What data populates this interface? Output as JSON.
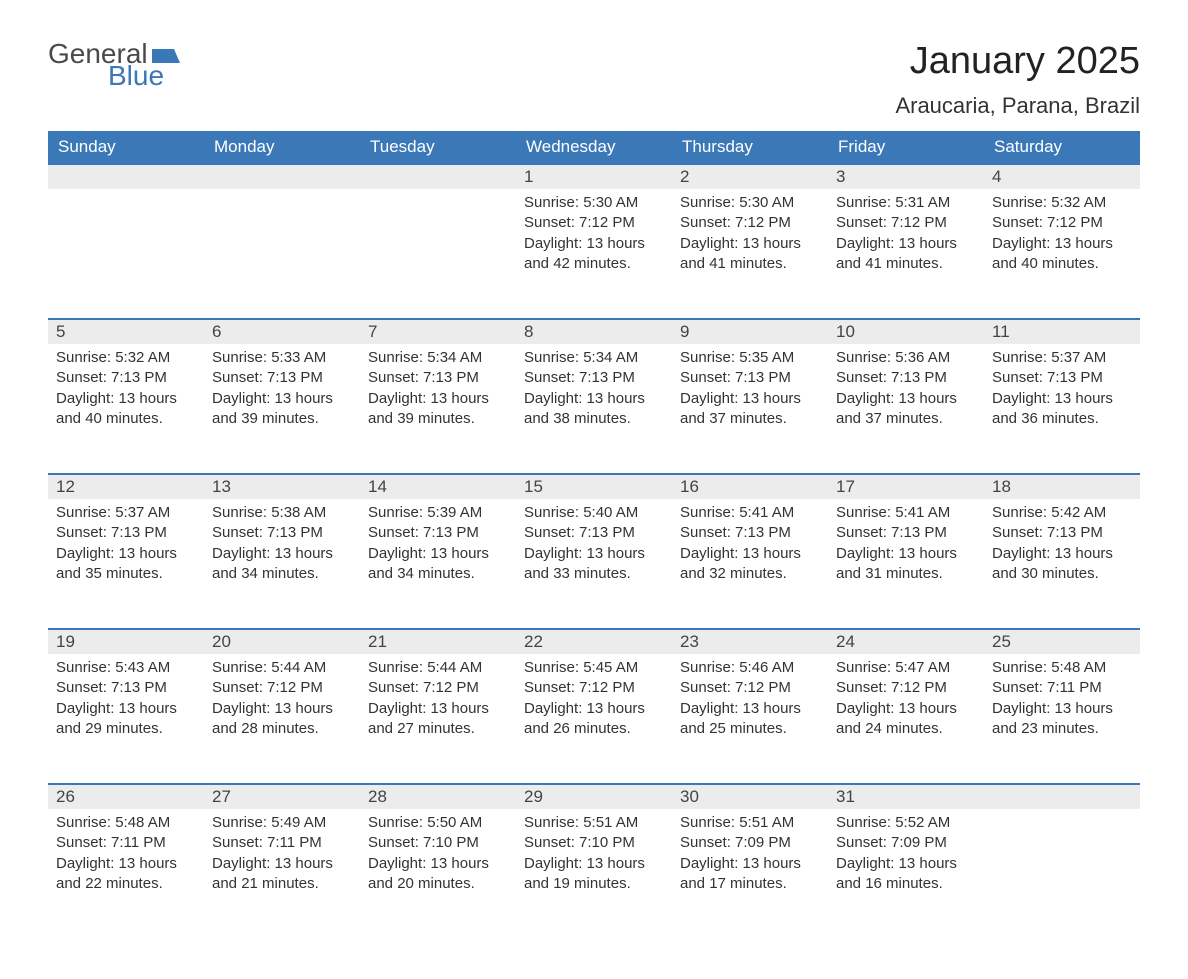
{
  "logo": {
    "text_general": "General",
    "text_blue": "Blue",
    "flag_color": "#3b78b8",
    "text_gray": "#4a4a4a"
  },
  "title": "January 2025",
  "location": "Araucaria, Parana, Brazil",
  "colors": {
    "header_bg": "#3b78b8",
    "header_text": "#ffffff",
    "daynum_bg": "#ececec",
    "row_border": "#3b78b8",
    "body_text": "#333333",
    "page_bg": "#ffffff"
  },
  "fonts": {
    "title_size_pt": 38,
    "location_size_pt": 22,
    "header_size_pt": 17,
    "body_size_pt": 15
  },
  "weekdays": [
    "Sunday",
    "Monday",
    "Tuesday",
    "Wednesday",
    "Thursday",
    "Friday",
    "Saturday"
  ],
  "weeks": [
    [
      null,
      null,
      null,
      {
        "n": "1",
        "sr": "5:30 AM",
        "ss": "7:12 PM",
        "dl": "13 hours and 42 minutes."
      },
      {
        "n": "2",
        "sr": "5:30 AM",
        "ss": "7:12 PM",
        "dl": "13 hours and 41 minutes."
      },
      {
        "n": "3",
        "sr": "5:31 AM",
        "ss": "7:12 PM",
        "dl": "13 hours and 41 minutes."
      },
      {
        "n": "4",
        "sr": "5:32 AM",
        "ss": "7:12 PM",
        "dl": "13 hours and 40 minutes."
      }
    ],
    [
      {
        "n": "5",
        "sr": "5:32 AM",
        "ss": "7:13 PM",
        "dl": "13 hours and 40 minutes."
      },
      {
        "n": "6",
        "sr": "5:33 AM",
        "ss": "7:13 PM",
        "dl": "13 hours and 39 minutes."
      },
      {
        "n": "7",
        "sr": "5:34 AM",
        "ss": "7:13 PM",
        "dl": "13 hours and 39 minutes."
      },
      {
        "n": "8",
        "sr": "5:34 AM",
        "ss": "7:13 PM",
        "dl": "13 hours and 38 minutes."
      },
      {
        "n": "9",
        "sr": "5:35 AM",
        "ss": "7:13 PM",
        "dl": "13 hours and 37 minutes."
      },
      {
        "n": "10",
        "sr": "5:36 AM",
        "ss": "7:13 PM",
        "dl": "13 hours and 37 minutes."
      },
      {
        "n": "11",
        "sr": "5:37 AM",
        "ss": "7:13 PM",
        "dl": "13 hours and 36 minutes."
      }
    ],
    [
      {
        "n": "12",
        "sr": "5:37 AM",
        "ss": "7:13 PM",
        "dl": "13 hours and 35 minutes."
      },
      {
        "n": "13",
        "sr": "5:38 AM",
        "ss": "7:13 PM",
        "dl": "13 hours and 34 minutes."
      },
      {
        "n": "14",
        "sr": "5:39 AM",
        "ss": "7:13 PM",
        "dl": "13 hours and 34 minutes."
      },
      {
        "n": "15",
        "sr": "5:40 AM",
        "ss": "7:13 PM",
        "dl": "13 hours and 33 minutes."
      },
      {
        "n": "16",
        "sr": "5:41 AM",
        "ss": "7:13 PM",
        "dl": "13 hours and 32 minutes."
      },
      {
        "n": "17",
        "sr": "5:41 AM",
        "ss": "7:13 PM",
        "dl": "13 hours and 31 minutes."
      },
      {
        "n": "18",
        "sr": "5:42 AM",
        "ss": "7:13 PM",
        "dl": "13 hours and 30 minutes."
      }
    ],
    [
      {
        "n": "19",
        "sr": "5:43 AM",
        "ss": "7:13 PM",
        "dl": "13 hours and 29 minutes."
      },
      {
        "n": "20",
        "sr": "5:44 AM",
        "ss": "7:12 PM",
        "dl": "13 hours and 28 minutes."
      },
      {
        "n": "21",
        "sr": "5:44 AM",
        "ss": "7:12 PM",
        "dl": "13 hours and 27 minutes."
      },
      {
        "n": "22",
        "sr": "5:45 AM",
        "ss": "7:12 PM",
        "dl": "13 hours and 26 minutes."
      },
      {
        "n": "23",
        "sr": "5:46 AM",
        "ss": "7:12 PM",
        "dl": "13 hours and 25 minutes."
      },
      {
        "n": "24",
        "sr": "5:47 AM",
        "ss": "7:12 PM",
        "dl": "13 hours and 24 minutes."
      },
      {
        "n": "25",
        "sr": "5:48 AM",
        "ss": "7:11 PM",
        "dl": "13 hours and 23 minutes."
      }
    ],
    [
      {
        "n": "26",
        "sr": "5:48 AM",
        "ss": "7:11 PM",
        "dl": "13 hours and 22 minutes."
      },
      {
        "n": "27",
        "sr": "5:49 AM",
        "ss": "7:11 PM",
        "dl": "13 hours and 21 minutes."
      },
      {
        "n": "28",
        "sr": "5:50 AM",
        "ss": "7:10 PM",
        "dl": "13 hours and 20 minutes."
      },
      {
        "n": "29",
        "sr": "5:51 AM",
        "ss": "7:10 PM",
        "dl": "13 hours and 19 minutes."
      },
      {
        "n": "30",
        "sr": "5:51 AM",
        "ss": "7:09 PM",
        "dl": "13 hours and 17 minutes."
      },
      {
        "n": "31",
        "sr": "5:52 AM",
        "ss": "7:09 PM",
        "dl": "13 hours and 16 minutes."
      },
      null
    ]
  ],
  "labels": {
    "sunrise": "Sunrise:",
    "sunset": "Sunset:",
    "daylight": "Daylight:"
  }
}
